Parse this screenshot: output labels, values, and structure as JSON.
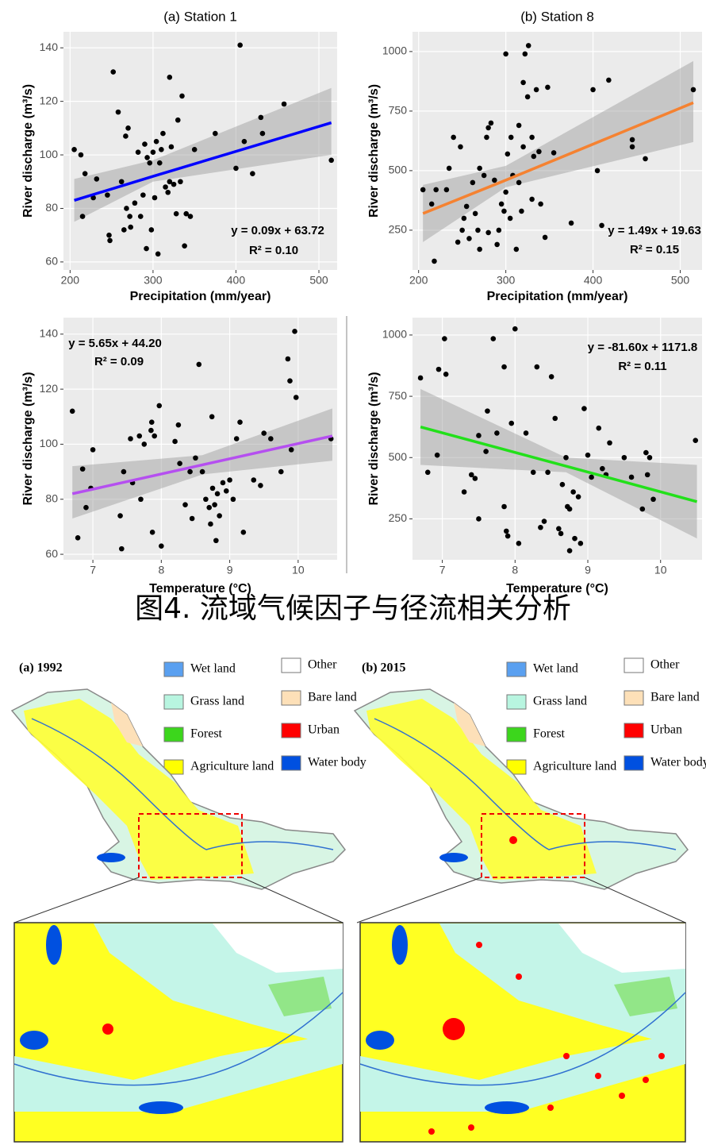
{
  "chart_data": [
    {
      "type": "scatter",
      "title": "(a) Station 1",
      "xlabel": "Precipitation (mm/year)",
      "ylabel": "River discharge (m³/s)",
      "xlim": [
        192,
        522
      ],
      "ylim": [
        57,
        146
      ],
      "xticks": [
        200,
        300,
        400,
        500
      ],
      "yticks": [
        60,
        80,
        100,
        120,
        140
      ],
      "color": "#000000",
      "grid": true,
      "x": [
        205,
        213,
        215,
        218,
        228,
        232,
        245,
        247,
        248,
        252,
        258,
        262,
        265,
        267,
        268,
        270,
        272,
        273,
        278,
        282,
        285,
        288,
        290,
        292,
        293,
        296,
        298,
        300,
        302,
        304,
        306,
        308,
        310,
        312,
        315,
        318,
        320,
        320,
        322,
        325,
        328,
        330,
        333,
        335,
        338,
        340,
        345,
        350,
        375,
        400,
        405,
        410,
        420,
        430,
        432,
        458,
        515
      ],
      "values": [
        102,
        100,
        77,
        93,
        84,
        91,
        85,
        70,
        68,
        131,
        116,
        90,
        72,
        107,
        80,
        110,
        77,
        73,
        82,
        101,
        77,
        85,
        104,
        65,
        99,
        97,
        72,
        101,
        84,
        105,
        63,
        97,
        102,
        108,
        88,
        86,
        129,
        90,
        103,
        89,
        78,
        113,
        90,
        122,
        66,
        78,
        77,
        102,
        108,
        95,
        141,
        105,
        93,
        114,
        108,
        119,
        98
      ],
      "fit": {
        "color": "#0000ff",
        "x": [
          205,
          300,
          515
        ],
        "values": [
          83,
          92,
          112
        ],
        "lower": [
          75,
          90,
          100
        ],
        "upper": [
          91,
          98,
          125
        ]
      },
      "annotations": [
        "y = 0.09x + 63.72",
        "R² = 0.10"
      ]
    },
    {
      "type": "scatter",
      "title": "(b) Station 8",
      "xlabel": "Precipitation (mm/year)",
      "ylabel": "River discharge (m³/s)",
      "xlim": [
        193,
        525
      ],
      "ylim": [
        83,
        1083
      ],
      "xticks": [
        200,
        300,
        400,
        500
      ],
      "yticks": [
        250,
        500,
        750,
        1000
      ],
      "color": "#000000",
      "grid": true,
      "x": [
        205,
        215,
        218,
        220,
        232,
        235,
        240,
        245,
        248,
        250,
        252,
        255,
        258,
        262,
        265,
        268,
        270,
        270,
        275,
        278,
        280,
        280,
        283,
        287,
        290,
        292,
        295,
        298,
        300,
        300,
        302,
        305,
        306,
        308,
        312,
        315,
        315,
        318,
        320,
        320,
        322,
        325,
        326,
        330,
        330,
        332,
        335,
        338,
        340,
        345,
        348,
        355,
        375,
        400,
        405,
        410,
        418,
        445,
        445,
        460,
        515
      ],
      "values": [
        420,
        360,
        120,
        420,
        420,
        510,
        640,
        200,
        600,
        250,
        300,
        350,
        215,
        450,
        320,
        250,
        170,
        510,
        480,
        640,
        680,
        240,
        700,
        460,
        190,
        250,
        360,
        330,
        410,
        990,
        570,
        300,
        640,
        480,
        170,
        690,
        450,
        330,
        600,
        870,
        990,
        810,
        1025,
        640,
        380,
        560,
        840,
        580,
        360,
        220,
        850,
        575,
        280,
        840,
        500,
        270,
        880,
        630,
        600,
        550,
        840
      ],
      "fit": {
        "color": "#f58231",
        "x": [
          205,
          300,
          515
        ],
        "values": [
          320,
          460,
          785
        ],
        "lower": [
          200,
          430,
          620
        ],
        "upper": [
          440,
          520,
          960
        ]
      },
      "annotations": [
        "y = 1.49x + 19.63",
        "R² = 0.15"
      ]
    },
    {
      "type": "scatter",
      "xlabel": "Temperature (°C)",
      "ylabel": "River discharge (m³/s)",
      "xlim": [
        6.57,
        10.57
      ],
      "ylim": [
        58,
        146
      ],
      "xticks": [
        7,
        8,
        9,
        10
      ],
      "yticks": [
        60,
        80,
        100,
        120,
        140
      ],
      "color": "#000000",
      "grid": true,
      "x": [
        6.7,
        6.78,
        6.85,
        6.9,
        6.97,
        7.0,
        7.4,
        7.42,
        7.45,
        7.55,
        7.58,
        7.68,
        7.7,
        7.75,
        7.85,
        7.86,
        7.87,
        7.9,
        7.97,
        8.0,
        8.2,
        8.25,
        8.27,
        8.35,
        8.42,
        8.45,
        8.5,
        8.55,
        8.6,
        8.65,
        8.7,
        8.72,
        8.74,
        8.75,
        8.78,
        8.8,
        8.82,
        8.85,
        8.9,
        8.95,
        9.0,
        9.05,
        9.1,
        9.15,
        9.2,
        9.35,
        9.45,
        9.5,
        9.6,
        9.75,
        9.85,
        9.88,
        9.9,
        9.95,
        9.97,
        10.48
      ],
      "values": [
        112,
        66,
        91,
        77,
        84,
        98,
        74,
        62,
        90,
        102,
        86,
        103,
        80,
        100,
        105,
        108,
        68,
        103,
        114,
        63,
        101,
        107,
        93,
        78,
        90,
        73,
        95,
        129,
        90,
        80,
        77,
        71,
        110,
        84,
        78,
        65,
        82,
        74,
        86,
        83,
        87,
        80,
        102,
        108,
        68,
        87,
        85,
        104,
        102,
        90,
        131,
        123,
        98,
        141,
        117,
        102
      ],
      "fit": {
        "color": "#b54ff0",
        "x": [
          6.7,
          8.6,
          10.5
        ],
        "values": [
          82,
          92.5,
          103
        ],
        "lower": [
          73,
          89,
          94
        ],
        "upper": [
          92,
          96,
          113
        ]
      },
      "annotations": [
        "y = 5.65x + 44.20",
        "R² = 0.09"
      ]
    },
    {
      "type": "scatter",
      "xlabel": "Temperature (°C)",
      "ylabel": "River discharge (m³/s)",
      "xlim": [
        6.59,
        10.57
      ],
      "ylim": [
        83,
        1071
      ],
      "xticks": [
        7,
        8,
        9,
        10
      ],
      "yticks": [
        250,
        500,
        750,
        1000
      ],
      "color": "#000000",
      "grid": true,
      "x": [
        6.7,
        6.8,
        6.93,
        6.95,
        7.03,
        7.05,
        7.3,
        7.4,
        7.45,
        7.5,
        7.5,
        7.6,
        7.62,
        7.7,
        7.75,
        7.85,
        7.85,
        7.88,
        7.9,
        7.95,
        8.0,
        8.05,
        8.15,
        8.25,
        8.3,
        8.35,
        8.4,
        8.45,
        8.5,
        8.55,
        8.6,
        8.63,
        8.65,
        8.7,
        8.72,
        8.75,
        8.75,
        8.8,
        8.82,
        8.87,
        8.9,
        8.95,
        9.0,
        9.05,
        9.15,
        9.2,
        9.25,
        9.3,
        9.5,
        9.6,
        9.75,
        9.8,
        9.82,
        9.85,
        9.9,
        10.48
      ],
      "values": [
        825,
        440,
        510,
        860,
        985,
        840,
        360,
        430,
        415,
        590,
        250,
        525,
        690,
        985,
        600,
        870,
        300,
        200,
        180,
        640,
        1025,
        150,
        600,
        440,
        870,
        215,
        240,
        440,
        830,
        660,
        210,
        190,
        390,
        500,
        300,
        120,
        290,
        360,
        170,
        340,
        150,
        700,
        510,
        420,
        620,
        455,
        430,
        560,
        500,
        420,
        290,
        520,
        430,
        500,
        330,
        570
      ],
      "fit": {
        "color": "#22e01a",
        "x": [
          6.7,
          8.7,
          10.5
        ],
        "values": [
          625,
          465,
          320
        ],
        "lower": [
          470,
          440,
          170
        ],
        "upper": [
          780,
          500,
          470
        ]
      },
      "annotations": [
        "y = -81.60x + 1171.8",
        "R² = 0.11"
      ]
    }
  ],
  "caption": "图4. 流域气候因子与径流相关分析",
  "maps": [
    {
      "label": "(a) 1992",
      "legend": [
        {
          "name": "Wet land",
          "color": "#5aa0f0"
        },
        {
          "name": "Grass land",
          "color": "#b8f5e0"
        },
        {
          "name": "Forest",
          "color": "#3cd61c"
        },
        {
          "name": "Agriculture land",
          "color": "#ffff00"
        },
        {
          "name": "Other",
          "color": "#ffffff"
        },
        {
          "name": "Bare land",
          "color": "#fde0b8"
        },
        {
          "name": "Urban",
          "color": "#ff0000"
        },
        {
          "name": "Water body",
          "color": "#0050e0"
        }
      ]
    },
    {
      "label": "(b) 2015",
      "legend": [
        {
          "name": "Wet land",
          "color": "#5aa0f0"
        },
        {
          "name": "Grass land",
          "color": "#b8f5e0"
        },
        {
          "name": "Forest",
          "color": "#3cd61c"
        },
        {
          "name": "Agriculture land",
          "color": "#ffff00"
        },
        {
          "name": "Other",
          "color": "#ffffff"
        },
        {
          "name": "Bare land",
          "color": "#fde0b8"
        },
        {
          "name": "Urban",
          "color": "#ff0000"
        },
        {
          "name": "Water body",
          "color": "#0050e0"
        }
      ]
    }
  ]
}
